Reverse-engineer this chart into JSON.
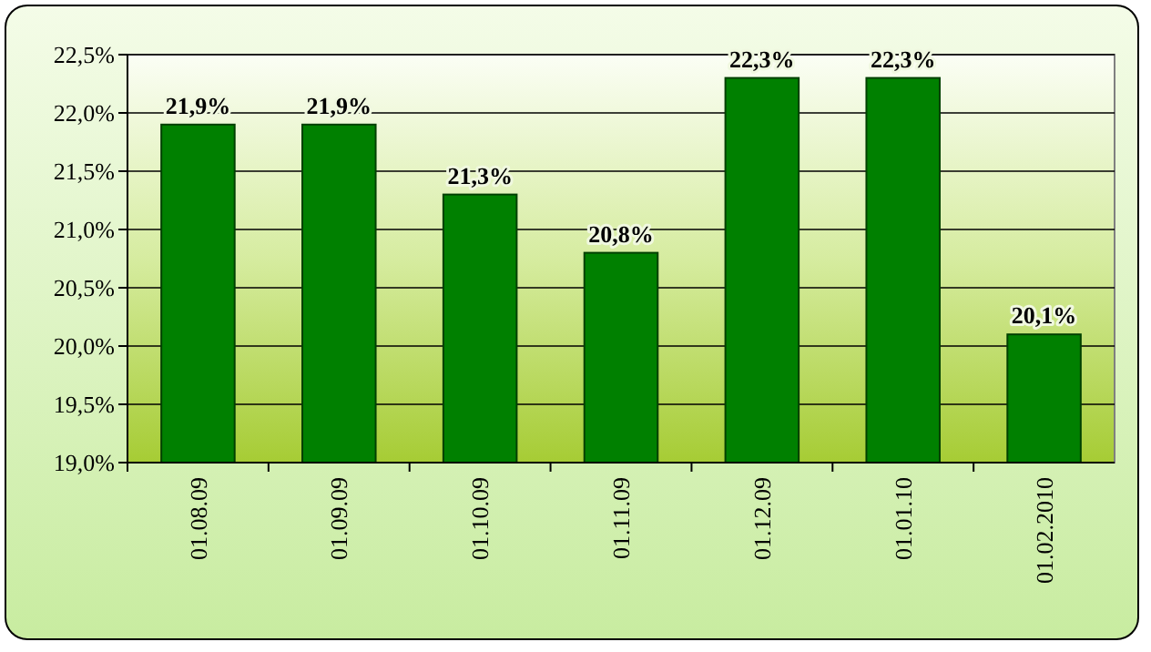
{
  "chart_data": {
    "type": "bar",
    "categories": [
      "01.08.09",
      "01.09.09",
      "01.10.09",
      "01.11.09",
      "01.12.09",
      "01.01.10",
      "01.02.2010"
    ],
    "values": [
      21.9,
      21.9,
      21.3,
      20.8,
      22.3,
      22.3,
      20.1
    ],
    "value_labels": [
      "21,9%",
      "21,9%",
      "21,3%",
      "20,8%",
      "22,3%",
      "22,3%",
      "20,1%"
    ],
    "color": "#008000",
    "ylim": [
      19,
      22.5
    ],
    "yticks": [
      {
        "value": 19,
        "label": "19,0%"
      },
      {
        "value": 19.5,
        "label": "19,5%"
      },
      {
        "value": 20,
        "label": "20,0%"
      },
      {
        "value": 20.5,
        "label": "20,5%"
      },
      {
        "value": 21,
        "label": "21,0%"
      },
      {
        "value": 21.5,
        "label": "21,5%"
      },
      {
        "value": 22,
        "label": "22,0%"
      },
      {
        "value": 22.5,
        "label": "22,5%"
      }
    ],
    "grid": "y"
  }
}
